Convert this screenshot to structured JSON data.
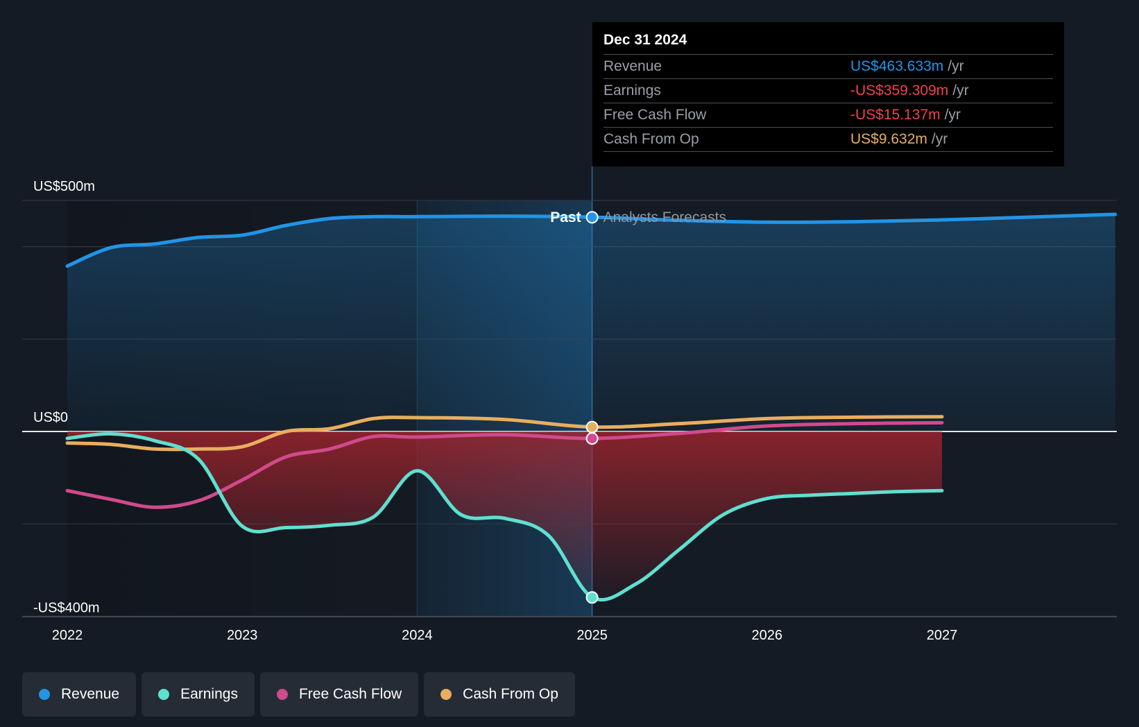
{
  "colors": {
    "background": "#151b24",
    "revenue": "#2394e6",
    "earnings": "#5ee0d0",
    "free_cash_flow": "#d04a8c",
    "cash_from_op": "#e8ae5f",
    "negative_value": "#f0424f"
  },
  "tooltip": {
    "title": "Dec 31 2024",
    "rows": [
      {
        "label": "Revenue",
        "value": "US$463.633m",
        "unit": "/yr",
        "color": "#2394e6"
      },
      {
        "label": "Earnings",
        "value": "-US$359.309m",
        "unit": "/yr",
        "color": "#f0424f"
      },
      {
        "label": "Free Cash Flow",
        "value": "-US$15.137m",
        "unit": "/yr",
        "color": "#f0424f"
      },
      {
        "label": "Cash From Op",
        "value": "US$9.632m",
        "unit": "/yr",
        "color": "#e8ae5f"
      }
    ]
  },
  "labels": {
    "past": "Past",
    "forecast": "Analysts Forecasts"
  },
  "legend": [
    {
      "label": "Revenue",
      "color": "#2394e6"
    },
    {
      "label": "Earnings",
      "color": "#5ee0d0"
    },
    {
      "label": "Free Cash Flow",
      "color": "#d04a8c"
    },
    {
      "label": "Cash From Op",
      "color": "#e8ae5f"
    }
  ],
  "chart_data": {
    "type": "line",
    "title": "",
    "xlabel": "",
    "ylabel": "",
    "ylim": [
      -400,
      500
    ],
    "xlim": [
      2022,
      2027.99
    ],
    "y_tick_labels": [
      {
        "value": 500,
        "label": "US$500m"
      },
      {
        "value": 0,
        "label": "US$0"
      },
      {
        "value": -400,
        "label": "-US$400m"
      }
    ],
    "y_gridlines": [
      500,
      400,
      200,
      0,
      -200,
      -400
    ],
    "x_ticks": [
      2022,
      2023,
      2024,
      2025,
      2026,
      2027
    ],
    "past_end": 2025,
    "highlight_start": 2024,
    "series": [
      {
        "name": "Revenue",
        "color": "#2394e6",
        "x": [
          2022,
          2022.25,
          2022.5,
          2022.75,
          2023,
          2023.25,
          2023.5,
          2023.75,
          2024,
          2024.5,
          2025,
          2025.5,
          2026,
          2026.5,
          2027,
          2027.5,
          2027.99
        ],
        "y": [
          358,
          398,
          406,
          420,
          425,
          446,
          461,
          465,
          465,
          466,
          464,
          457,
          453,
          454,
          458,
          464,
          470
        ]
      },
      {
        "name": "Earnings",
        "color": "#5ee0d0",
        "x": [
          2022,
          2022.25,
          2022.5,
          2022.75,
          2023,
          2023.25,
          2023.5,
          2023.75,
          2024,
          2024.25,
          2024.5,
          2024.75,
          2025,
          2025.25,
          2025.5,
          2025.75,
          2026,
          2026.25,
          2026.5,
          2026.75,
          2027
        ],
        "y": [
          -15,
          -5,
          -20,
          -60,
          -205,
          -208,
          -203,
          -185,
          -85,
          -180,
          -188,
          -225,
          -359,
          -330,
          -255,
          -180,
          -145,
          -138,
          -134,
          -130,
          -128
        ]
      },
      {
        "name": "Free Cash Flow",
        "color": "#d04a8c",
        "x": [
          2022,
          2022.25,
          2022.5,
          2022.75,
          2023,
          2023.25,
          2023.5,
          2023.75,
          2024,
          2024.5,
          2025,
          2025.5,
          2026,
          2026.5,
          2027
        ],
        "y": [
          -128,
          -147,
          -164,
          -150,
          -105,
          -55,
          -38,
          -11,
          -12,
          -7,
          -15,
          -4,
          12,
          17,
          19
        ]
      },
      {
        "name": "Cash From Op",
        "color": "#e8ae5f",
        "x": [
          2022,
          2022.25,
          2022.5,
          2022.75,
          2023,
          2023.25,
          2023.5,
          2023.75,
          2024,
          2024.5,
          2025,
          2025.5,
          2026,
          2026.5,
          2027
        ],
        "y": [
          -25,
          -28,
          -38,
          -38,
          -33,
          0,
          6,
          28,
          30,
          26,
          9.632,
          17,
          28,
          31,
          32
        ]
      }
    ],
    "highlighted_point": {
      "x": 2025,
      "values": {
        "Revenue": 463.633,
        "Earnings": -359.309,
        "Free Cash Flow": -15.137,
        "Cash From Op": 9.632
      }
    }
  }
}
